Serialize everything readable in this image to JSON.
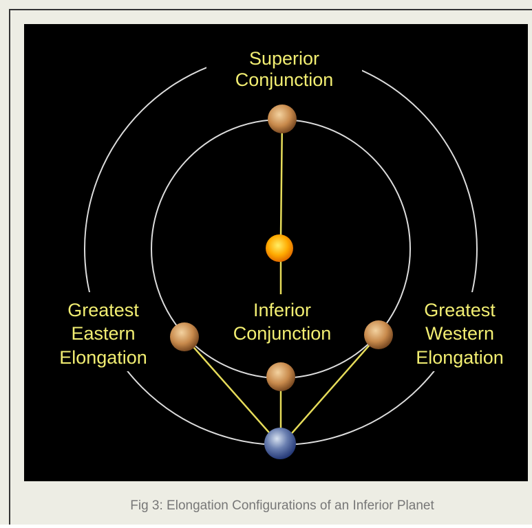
{
  "labels": {
    "superior": [
      "Superior",
      "Conjunction"
    ],
    "inferior": [
      "Inferior",
      "Conjunction"
    ],
    "eastern": [
      "Greatest",
      "Eastern",
      "Elongation"
    ],
    "western": [
      "Greatest",
      "Western",
      "Elongation"
    ]
  },
  "caption": "Fig 3: Elongation Configurations of an Inferior Planet"
}
